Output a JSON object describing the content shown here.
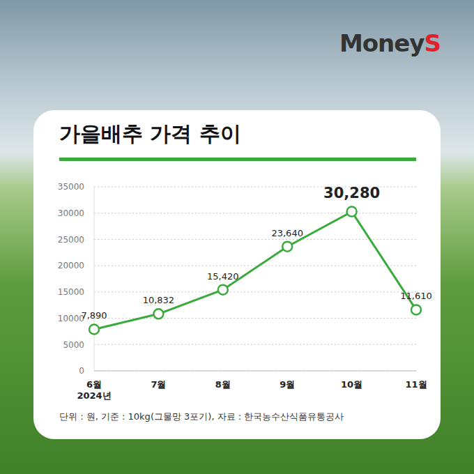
{
  "chart_data": {
    "type": "line",
    "title": "가을배추 가격 추이",
    "categories": [
      "6월\n2024년",
      "7월",
      "8월",
      "9월",
      "10월",
      "11월"
    ],
    "values": [
      7890,
      10832,
      15420,
      23640,
      30280,
      11610
    ],
    "value_labels": [
      "7,890",
      "10,832",
      "15,420",
      "23,640",
      "30,280",
      "11,610"
    ],
    "data_labels": true,
    "color": "#3aaa3c",
    "ylim": [
      0,
      35000
    ],
    "yticks": [
      0,
      5000,
      10000,
      15000,
      20000,
      25000,
      30000,
      35000
    ],
    "grid": true,
    "marker": "circle",
    "note": "단위 : 원, 기준 : 10kg(그물망 3포기), 자료 : 한국농수산식품유통공사",
    "brand": "MoneyS"
  }
}
